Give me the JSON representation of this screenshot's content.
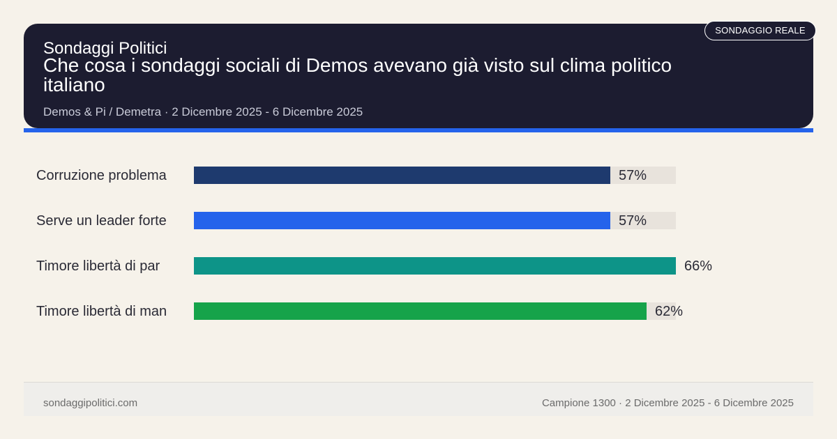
{
  "header": {
    "brand": "Sondaggi Politici",
    "title": "Che cosa i sondaggi sociali di Demos avevano già visto sul clima politico italiano",
    "subtitle": "Demos & Pi / Demetra · 2 Dicembre 2025 - 6 Dicembre 2025",
    "badge": "SONDAGGIO REALE",
    "background_color": "#1c1c30",
    "accent_color": "#2563eb"
  },
  "chart_data": {
    "type": "bar",
    "orientation": "horizontal",
    "categories": [
      "Corruzione problema",
      "Serve un leader forte",
      "Timore libertà di par",
      "Timore libertà di man"
    ],
    "values": [
      57,
      57,
      66,
      62
    ],
    "value_labels": [
      "57%",
      "57%",
      "66%",
      "62%"
    ],
    "colors": [
      "#1e3a6e",
      "#2563eb",
      "#0d9488",
      "#16a34a"
    ],
    "track_color": "#e8e3dc",
    "xlim": [
      0,
      66
    ],
    "grid": false,
    "legend": "none"
  },
  "footer": {
    "site": "sondaggipolitici.com",
    "note": "Campione 1300 · 2 Dicembre 2025 - 6 Dicembre 2025"
  }
}
